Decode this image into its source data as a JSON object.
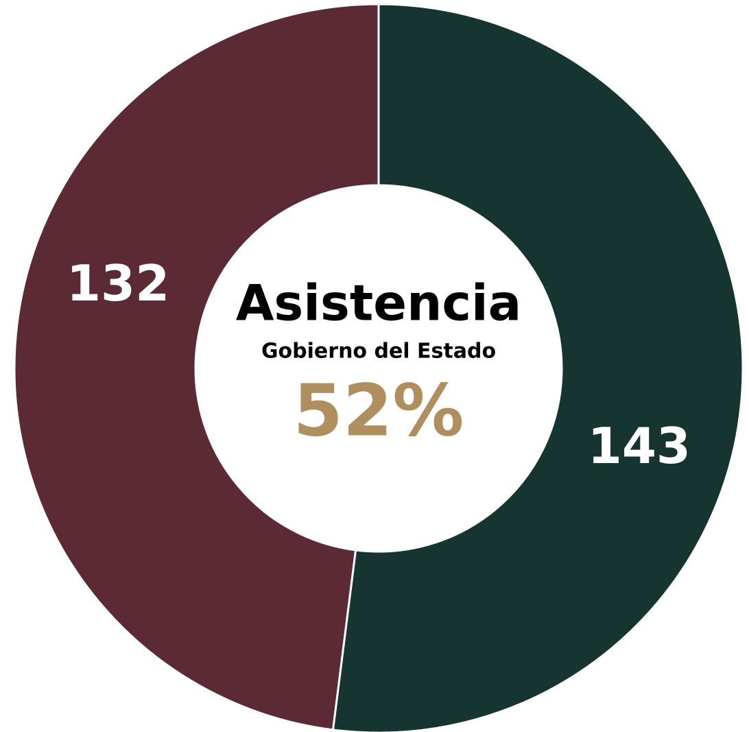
{
  "chart_data": {
    "type": "donut",
    "categories": [
      null,
      null
    ],
    "series": [
      {
        "name": null,
        "values": [
          143,
          132
        ],
        "colors": [
          "#163430",
          "#5c2a34"
        ]
      }
    ],
    "center_title": "Asistencia",
    "center_subtitle": "Gobierno del Estado",
    "center_value_label": "52%",
    "center_value_color": "#b08f5e"
  }
}
